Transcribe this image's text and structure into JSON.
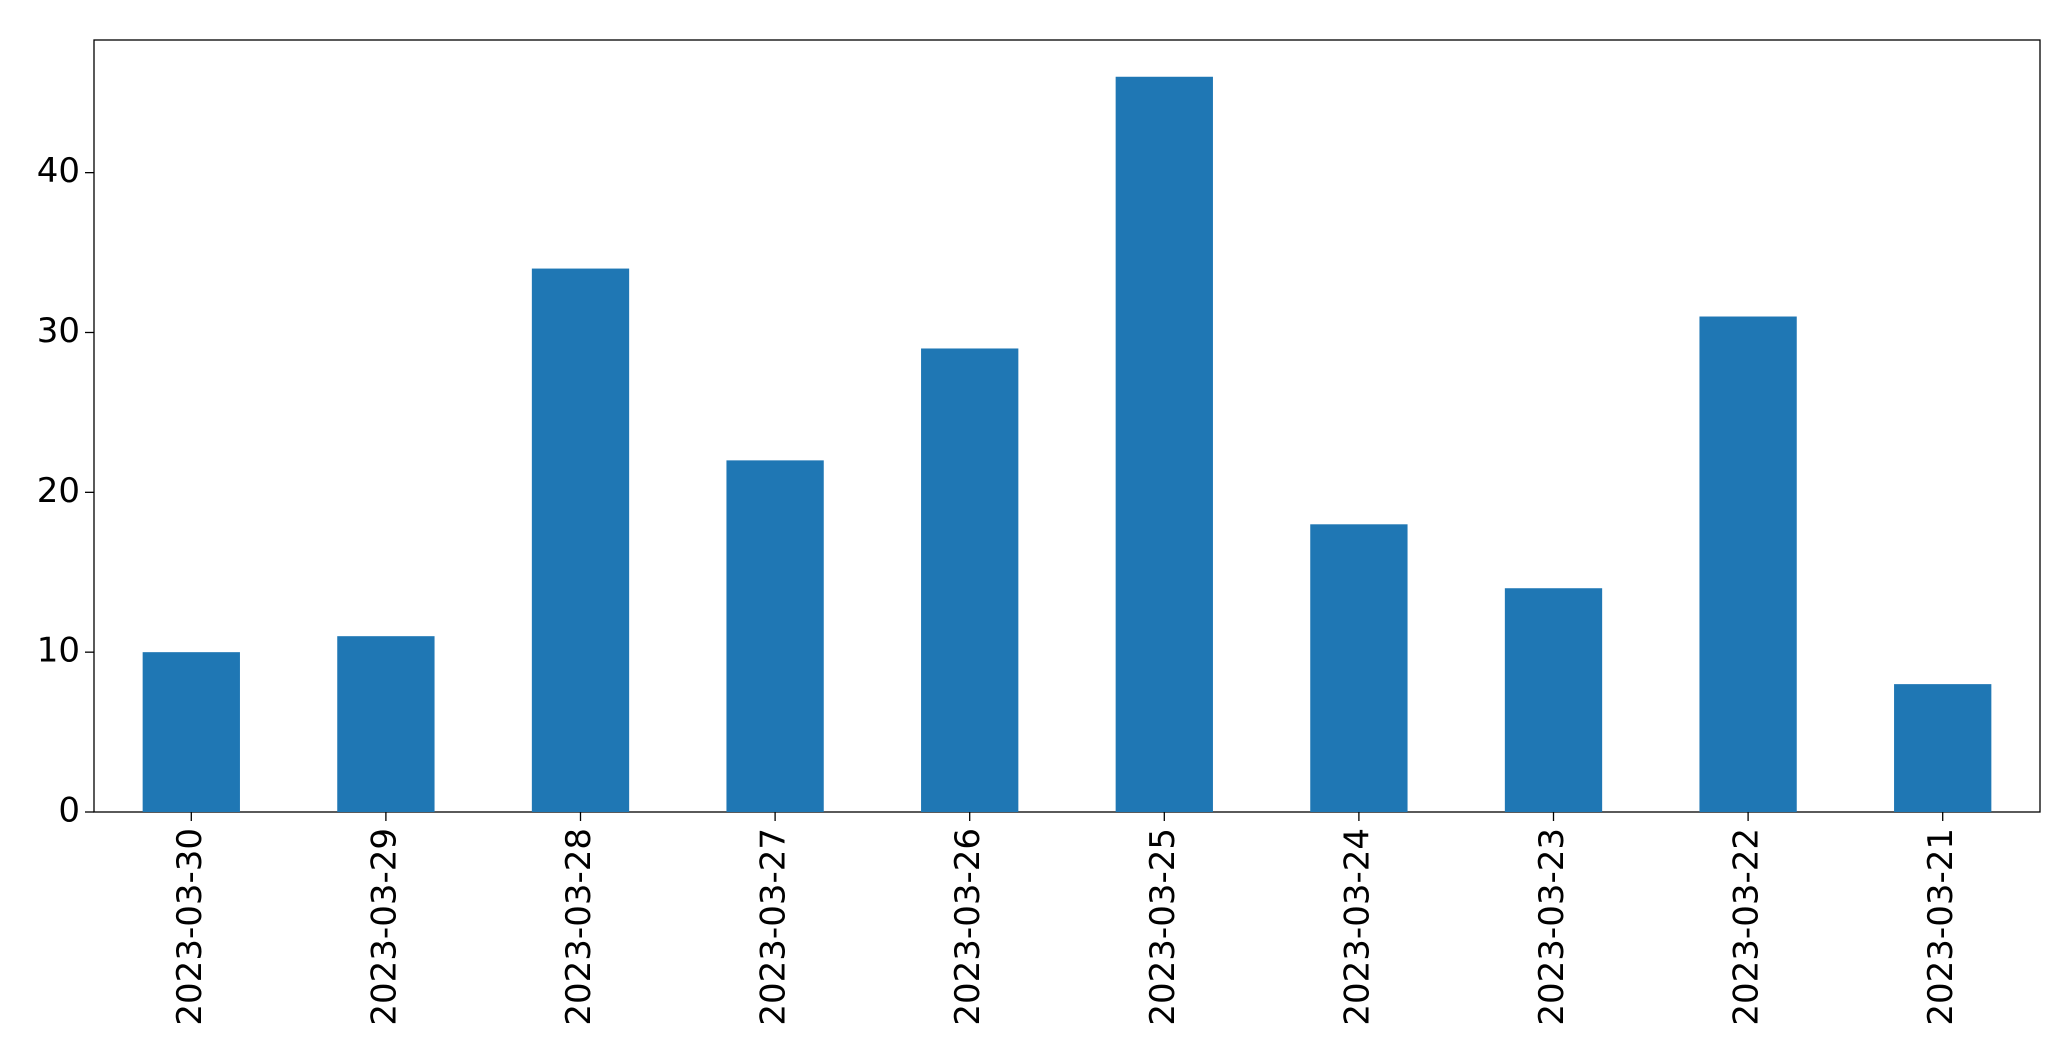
{
  "chart_data": {
    "type": "bar",
    "categories": [
      "2023-03-30",
      "2023-03-29",
      "2023-03-28",
      "2023-03-27",
      "2023-03-26",
      "2023-03-25",
      "2023-03-24",
      "2023-03-23",
      "2023-03-22",
      "2023-03-21"
    ],
    "values": [
      10,
      11,
      34,
      22,
      29,
      46,
      18,
      14,
      31,
      8
    ],
    "color": "#1f77b4",
    "ylim": [
      0,
      48.3
    ],
    "yticks": [
      0,
      10,
      20,
      30,
      40
    ],
    "grid": false
  }
}
